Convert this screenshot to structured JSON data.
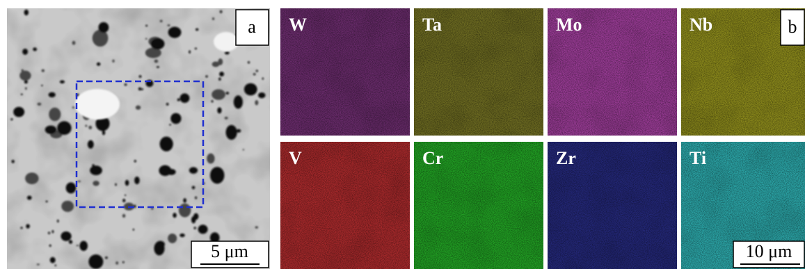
{
  "panels": {
    "a": {
      "label": "a",
      "scale_bar": "5 μm"
    },
    "b": {
      "label": "b",
      "scale_bar": "10 μm",
      "maps": [
        {
          "element": "W",
          "color": "#6a2c6c"
        },
        {
          "element": "Ta",
          "color": "#6e6c22"
        },
        {
          "element": "Mo",
          "color": "#9a3c96"
        },
        {
          "element": "Nb",
          "color": "#8c8a1c"
        },
        {
          "element": "V",
          "color": "#a82a2c"
        },
        {
          "element": "Cr",
          "color": "#22a024"
        },
        {
          "element": "Zr",
          "color": "#242878"
        },
        {
          "element": "Ti",
          "color": "#2ca6a8"
        }
      ]
    }
  }
}
